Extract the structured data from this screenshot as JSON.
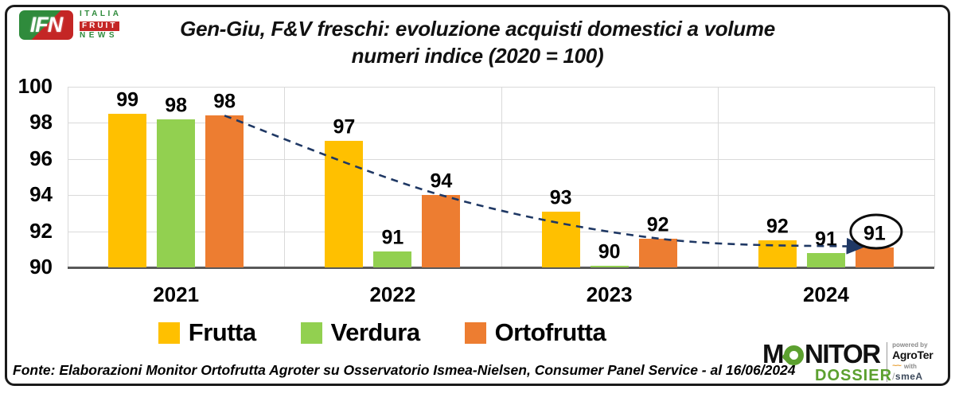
{
  "header": {
    "ifn_logo": {
      "acronym": "IFN",
      "line1": "ITALIA",
      "line2": "FRUIT",
      "line3": "NEWS"
    },
    "title_line1": "Gen-Giu, F&V freschi: evoluzione acquisti domestici a volume",
    "title_line2": "numeri indice (2020 = 100)"
  },
  "chart_data": {
    "type": "bar",
    "title": "Gen-Giu, F&V freschi: evoluzione acquisti domestici a volume — numeri indice (2020 = 100)",
    "categories": [
      "2021",
      "2022",
      "2023",
      "2024"
    ],
    "series": [
      {
        "name": "Frutta",
        "color": "#FFC000",
        "labels": [
          99,
          97,
          93,
          92
        ],
        "values": [
          98.5,
          97.0,
          93.1,
          91.5
        ]
      },
      {
        "name": "Verdura",
        "color": "#92D050",
        "labels": [
          98,
          91,
          90,
          91
        ],
        "values": [
          98.2,
          90.9,
          90.1,
          90.8
        ]
      },
      {
        "name": "Ortofrutta",
        "color": "#ED7D31",
        "labels": [
          98,
          94,
          92,
          91
        ],
        "values": [
          98.4,
          94.0,
          91.6,
          91.1
        ]
      }
    ],
    "ylim": [
      90,
      100
    ],
    "y_ticks": [
      100,
      98,
      96,
      94,
      92,
      90
    ],
    "grid": true,
    "legend_position": "bottom",
    "trend_line": {
      "follows_series": "Ortofrutta",
      "color": "#1F3864",
      "style": "dashed",
      "arrow_end": true
    },
    "annotation": {
      "shape": "ellipse",
      "around_label": "91",
      "at_series": "Ortofrutta",
      "at_category": "2024"
    }
  },
  "footer": {
    "source": "Fonte: Elaborazioni Monitor Ortofrutta Agroter su Osservatorio Ismea-Nielsen, Consumer Panel Service - al 16/06/2024",
    "monitor_logo": {
      "word_part1": "M",
      "word_part2": "NITOR",
      "word2": "DOSSIER",
      "powered_by": "powered by",
      "partner1": "AgroTer",
      "with_label": "with",
      "flame": "~~",
      "partner2": "smeA",
      "slash": "/"
    }
  }
}
